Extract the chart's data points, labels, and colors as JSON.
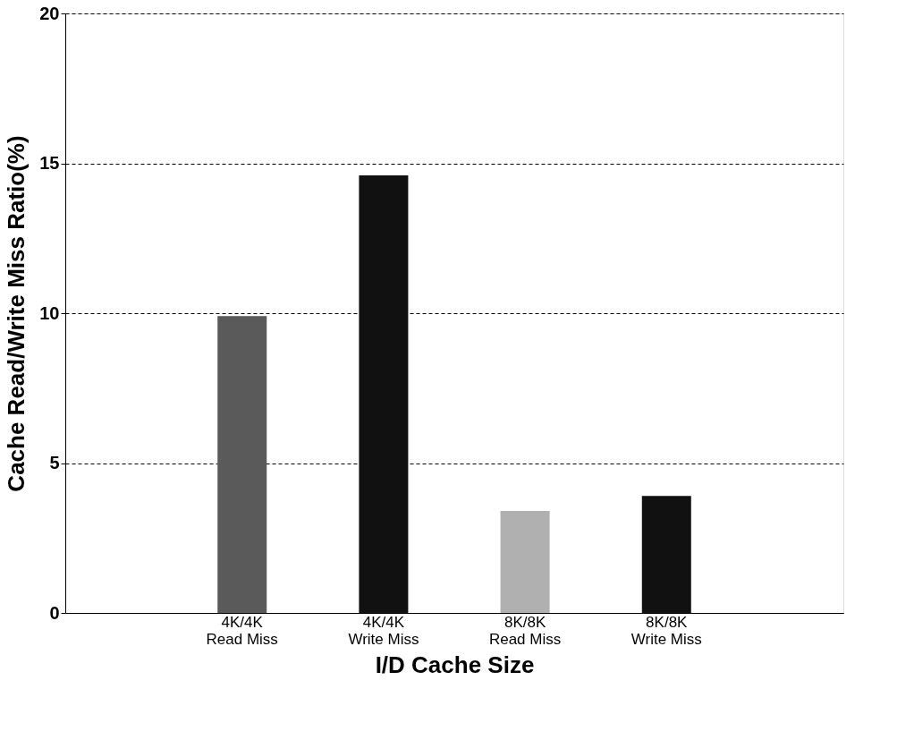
{
  "chart_data": {
    "type": "bar",
    "xlabel": "I/D Cache Size",
    "ylabel": "Cache Read/Write Miss Ratio(%)",
    "categories": [
      "4K/4K\nRead Miss",
      "4K/4K\nWrite Miss",
      "8K/8K\nRead Miss",
      "8K/8K\nWrite Miss"
    ],
    "values": [
      9.9,
      14.6,
      3.4,
      3.9
    ],
    "colors": [
      "#5a5a5a",
      "#111111",
      "#b0b0b0",
      "#111111"
    ],
    "ylim": [
      0,
      20
    ],
    "yticks": [
      0,
      5,
      10,
      15,
      20
    ],
    "grid": "y"
  }
}
